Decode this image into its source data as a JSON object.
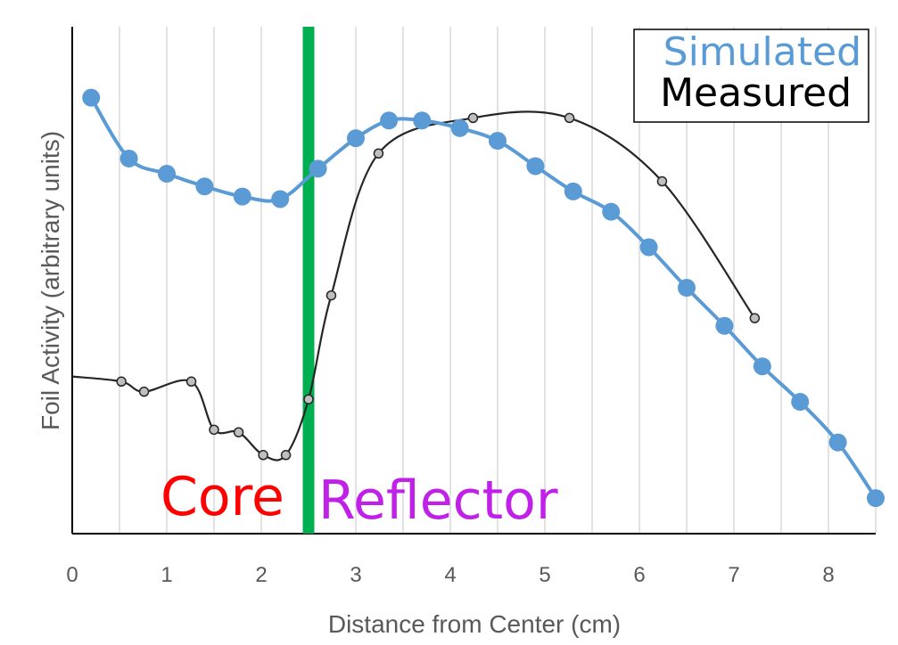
{
  "chart_data": {
    "type": "line",
    "title": "",
    "xlabel": "Distance from Center (cm)",
    "ylabel": "Foil Activity (arbitrary units)",
    "xlim": [
      0,
      8.5
    ],
    "ylim": [
      0,
      100
    ],
    "xticks": [
      "0",
      "1",
      "2",
      "3",
      "4",
      "5",
      "6",
      "7",
      "8"
    ],
    "grid": "vertical",
    "boundary_x": 2.5,
    "boundary_color": "#00b050",
    "legend": {
      "position": "top-right",
      "entries": [
        "Simulated",
        "Measured"
      ]
    },
    "region_labels": {
      "core": "Core",
      "reflector": "Reflector"
    },
    "colors": {
      "simulated": "#5b9bd5",
      "measured": "#262626",
      "core": "#ff0000",
      "reflector": "#c020e8",
      "axis_text": "#595959"
    },
    "series": [
      {
        "name": "Simulated",
        "x": [
          0.2,
          0.6,
          1.0,
          1.4,
          1.8,
          2.2,
          2.6,
          3.0,
          3.35,
          3.7,
          4.1,
          4.5,
          4.9,
          5.3,
          5.7,
          6.1,
          6.5,
          6.9,
          7.3,
          7.7,
          8.1,
          8.5
        ],
        "y": [
          86,
          74,
          71,
          68.5,
          66.5,
          66,
          72,
          78,
          81.5,
          81.5,
          80,
          77.5,
          72.5,
          67.5,
          63.5,
          56.5,
          48.5,
          41,
          33,
          26,
          18,
          7
        ]
      },
      {
        "name": "Measured",
        "x": [
          0.52,
          0.76,
          1.26,
          1.5,
          1.76,
          2.02,
          2.26,
          2.5,
          2.74,
          3.24,
          4.24,
          5.26,
          6.24,
          7.22
        ],
        "y": [
          30,
          28,
          30,
          20.5,
          20,
          15.5,
          15.5,
          26.5,
          47,
          75,
          82,
          82,
          69.5,
          42.5
        ]
      }
    ]
  }
}
